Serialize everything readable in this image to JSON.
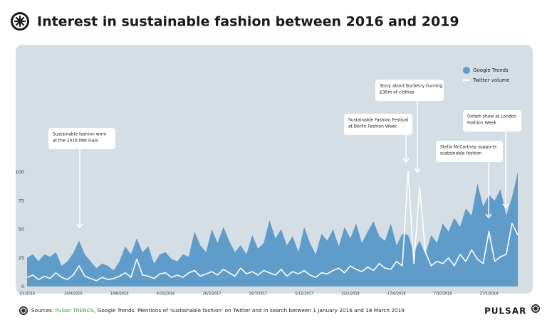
{
  "chart_data": {
    "type": "area-line",
    "title": "Interest in sustainable fashion between 2016 and 2019",
    "categories": [
      "1/1/2016",
      null,
      null,
      null,
      null,
      null,
      null,
      null,
      "24/4/2016",
      null,
      null,
      null,
      null,
      null,
      null,
      null,
      "14/8/2016",
      null,
      null,
      null,
      null,
      null,
      null,
      null,
      "4/12/2016",
      null,
      null,
      null,
      null,
      null,
      null,
      null,
      "26/3/2017",
      null,
      null,
      null,
      null,
      null,
      null,
      null,
      "16/7/2017",
      null,
      null,
      null,
      null,
      null,
      null,
      null,
      "5/11/2017",
      null,
      null,
      null,
      null,
      null,
      null,
      null,
      "25/2/2018",
      null,
      null,
      null,
      null,
      null,
      null,
      null,
      "17/6/2018",
      null,
      null,
      null,
      null,
      null,
      null,
      null,
      "7/10/2018",
      null,
      null,
      null,
      null,
      null,
      null,
      null,
      "27/1/2019",
      null,
      null,
      null,
      null,
      null
    ],
    "series": [
      {
        "name": "Google Trends",
        "color": "#5f9cc9",
        "values": [
          25,
          28,
          22,
          28,
          26,
          30,
          18,
          22,
          29,
          40,
          28,
          22,
          16,
          20,
          18,
          14,
          22,
          35,
          28,
          42,
          30,
          35,
          20,
          28,
          30,
          24,
          22,
          28,
          26,
          48,
          36,
          30,
          50,
          38,
          52,
          40,
          30,
          36,
          28,
          45,
          33,
          38,
          58,
          42,
          50,
          36,
          44,
          30,
          52,
          38,
          28,
          46,
          40,
          50,
          35,
          52,
          42,
          55,
          38,
          48,
          57,
          44,
          40,
          55,
          36,
          46,
          45,
          30,
          40,
          28,
          45,
          38,
          55,
          48,
          60,
          52,
          68,
          62,
          90,
          70,
          80,
          75,
          85,
          62,
          78,
          100
        ]
      },
      {
        "name": "Twitter volume",
        "color": "#ffffff",
        "values": [
          8,
          10,
          6,
          9,
          7,
          12,
          8,
          6,
          10,
          18,
          9,
          7,
          5,
          8,
          6,
          7,
          9,
          12,
          8,
          24,
          10,
          9,
          7,
          11,
          12,
          8,
          10,
          8,
          12,
          14,
          9,
          11,
          13,
          10,
          15,
          12,
          9,
          16,
          11,
          13,
          10,
          14,
          12,
          10,
          15,
          9,
          13,
          11,
          14,
          10,
          8,
          12,
          11,
          14,
          16,
          12,
          18,
          15,
          13,
          17,
          14,
          20,
          16,
          15,
          22,
          18,
          101,
          20,
          87,
          30,
          18,
          22,
          20,
          25,
          18,
          28,
          22,
          32,
          24,
          20,
          48,
          22,
          26,
          28,
          55,
          45
        ]
      }
    ],
    "ylim": [
      0,
      100
    ],
    "yticks": [
      0,
      25,
      50,
      75,
      100
    ],
    "legend": "top-right",
    "annotations": [
      {
        "lines": [
          "Sustainable fashion worn",
          "at the 2016 Met Gala"
        ]
      },
      {
        "lines": [
          "Sustainable Fashion Festival",
          "at Berlin Fashion Week"
        ]
      },
      {
        "lines": [
          "Story about Burberry burning",
          "$36m of clothes"
        ]
      },
      {
        "lines": [
          "Stella McCartney supports",
          "sustainable fashion"
        ]
      },
      {
        "lines": [
          "Oxfam show at London",
          "Fashion Week"
        ]
      }
    ]
  },
  "footer": {
    "prefix": "Sources: ",
    "highlight": "Pulsar TRENDS",
    "text": ", Google Trends. Mentions of ‘sustainable fashion’ on Twitter and in search between 1 January 2016 and 18 March 2019",
    "brand": "PULSAR"
  }
}
